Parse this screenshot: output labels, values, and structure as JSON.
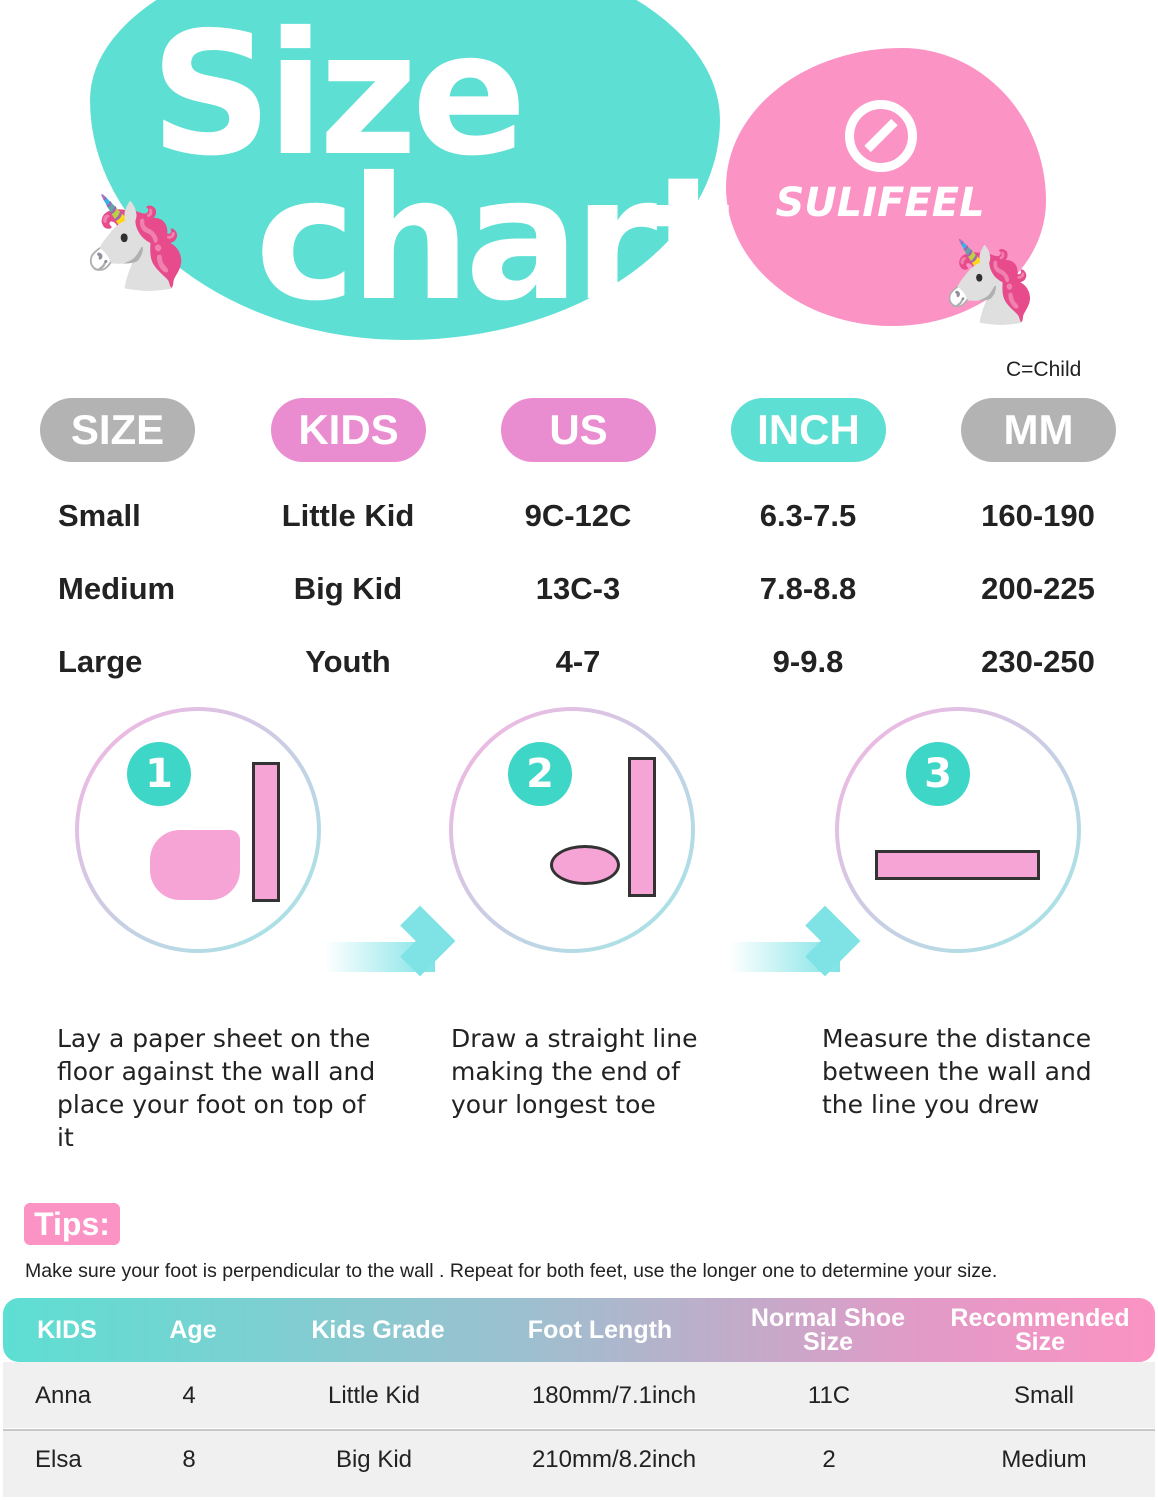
{
  "header": {
    "title_line1": "Size",
    "title_line2": "chart",
    "brand": "SULIFEEL",
    "note": "C=Child"
  },
  "colors": {
    "teal": "#5ddfd3",
    "pink": "#fb93c4",
    "pill_pink": "#ea8dd0",
    "pill_gray": "#b3b3b3"
  },
  "size_table": {
    "headers": [
      "SIZE",
      "KIDS",
      "US",
      "INCH",
      "MM"
    ],
    "rows": [
      [
        "Small",
        "Little Kid",
        "9C-12C",
        "6.3-7.5",
        "160-190"
      ],
      [
        "Medium",
        "Big Kid",
        "13C-3",
        "7.8-8.8",
        "200-225"
      ],
      [
        "Large",
        "Youth",
        "4-7",
        "9-9.8",
        "230-250"
      ]
    ]
  },
  "steps": [
    {
      "number": "1",
      "icon": "foot-against-wall-icon",
      "text": "Lay a paper sheet on the floor against the wall and place your foot on top of it"
    },
    {
      "number": "2",
      "icon": "foot-outline-icon",
      "text": "Draw a straight line making the end of your longest toe"
    },
    {
      "number": "3",
      "icon": "ruler-measure-icon",
      "text": "Measure the distance between the wall and the line you drew"
    }
  ],
  "tips": {
    "label": "Tips:",
    "text": "Make sure your foot is perpendicular to the wall . Repeat for both feet, use the longer one to determine your size."
  },
  "example_table": {
    "headers": [
      "KIDS",
      "Age",
      "Kids Grade",
      "Foot Length",
      "Normal Shoe Size",
      "Recommended Size"
    ],
    "rows": [
      [
        "Anna",
        "4",
        "Little Kid",
        "180mm/7.1inch",
        "11C",
        "Small"
      ],
      [
        "Elsa",
        "8",
        "Big Kid",
        "210mm/8.2inch",
        "2",
        "Medium"
      ]
    ]
  }
}
